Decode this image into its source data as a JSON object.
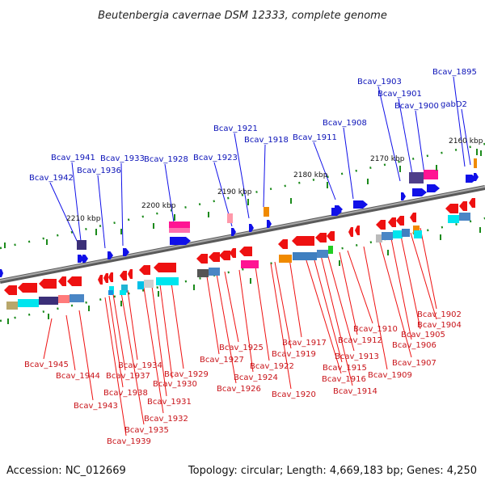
{
  "title": "Beutenbergia cavernae DSM 12333, complete genome",
  "accession": "Accession: NC_012669",
  "summary": "Topology: circular; Length: 4,669,183 bp; Genes: 4,250",
  "ticks": [
    "2160 kbp",
    "2170 kbp",
    "2180 kbp",
    "2190 kbp",
    "2200 kbp",
    "2210 kbp"
  ],
  "top_labels": [
    "Bcav_1895",
    "gabD2",
    "Bcav_1900",
    "Bcav_1901",
    "Bcav_1903",
    "Bcav_1908",
    "Bcav_1911",
    "Bcav_1918",
    "Bcav_1921",
    "Bcav_1923",
    "Bcav_1928",
    "Bcav_1933",
    "Bcav_1936",
    "Bcav_1941",
    "Bcav_1942"
  ],
  "bottom_labels": [
    "Bcav_1902",
    "Bcav_1904",
    "Bcav_1905",
    "Bcav_1906",
    "Bcav_1907",
    "Bcav_1909",
    "Bcav_1910",
    "Bcav_1912",
    "Bcav_1913",
    "Bcav_1914",
    "Bcav_1915",
    "Bcav_1916",
    "Bcav_1917",
    "Bcav_1919",
    "Bcav_1920",
    "Bcav_1922",
    "Bcav_1924",
    "Bcav_1925",
    "Bcav_1926",
    "Bcav_1927",
    "Bcav_1929",
    "Bcav_1930",
    "Bcav_1931",
    "Bcav_1932",
    "Bcav_1934",
    "Bcav_1935",
    "Bcav_1937",
    "Bcav_1938",
    "Bcav_1939",
    "Bcav_1943",
    "Bcav_1944",
    "Bcav_1945"
  ],
  "colors": {
    "forward": "#1010e8",
    "reverse": "#ee1111",
    "backbone": "#888888",
    "tick_green": "#1b8a1b"
  }
}
